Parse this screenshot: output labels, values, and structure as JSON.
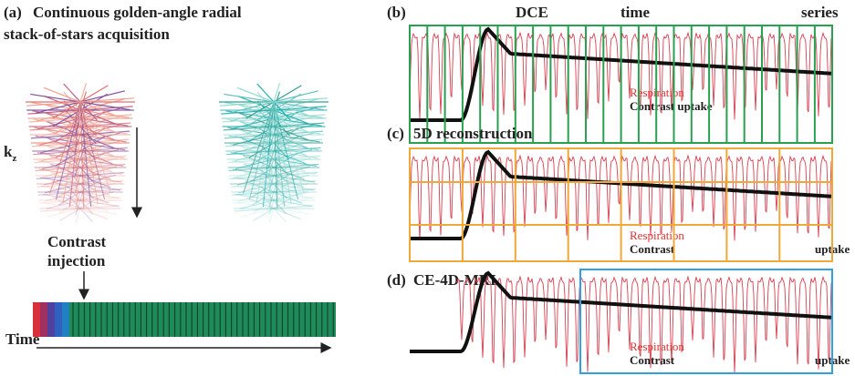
{
  "panel_a": {
    "label": "(a)",
    "title_lines": [
      "Continuous golden-angle radial",
      "stack-of-stars acquisition"
    ],
    "axis": {
      "base": "k",
      "sub": "z"
    },
    "injection_lines": [
      "Contrast",
      "injection"
    ],
    "time": "Time"
  },
  "panel_b": {
    "label": "(b)",
    "title_words": [
      "DCE",
      "time",
      "series"
    ],
    "respiration": "Respiration",
    "contrast": "Contrast uptake"
  },
  "panel_c": {
    "label": "(c)",
    "title": "5D reconstruction",
    "respiration": "Respiration",
    "contrast": "Contrast",
    "uptake": "uptake"
  },
  "panel_d": {
    "label": "(d)",
    "title": "CE-4D-MRI",
    "respiration": "Respiration",
    "contrast": "Contrast",
    "uptake": "uptake"
  }
}
